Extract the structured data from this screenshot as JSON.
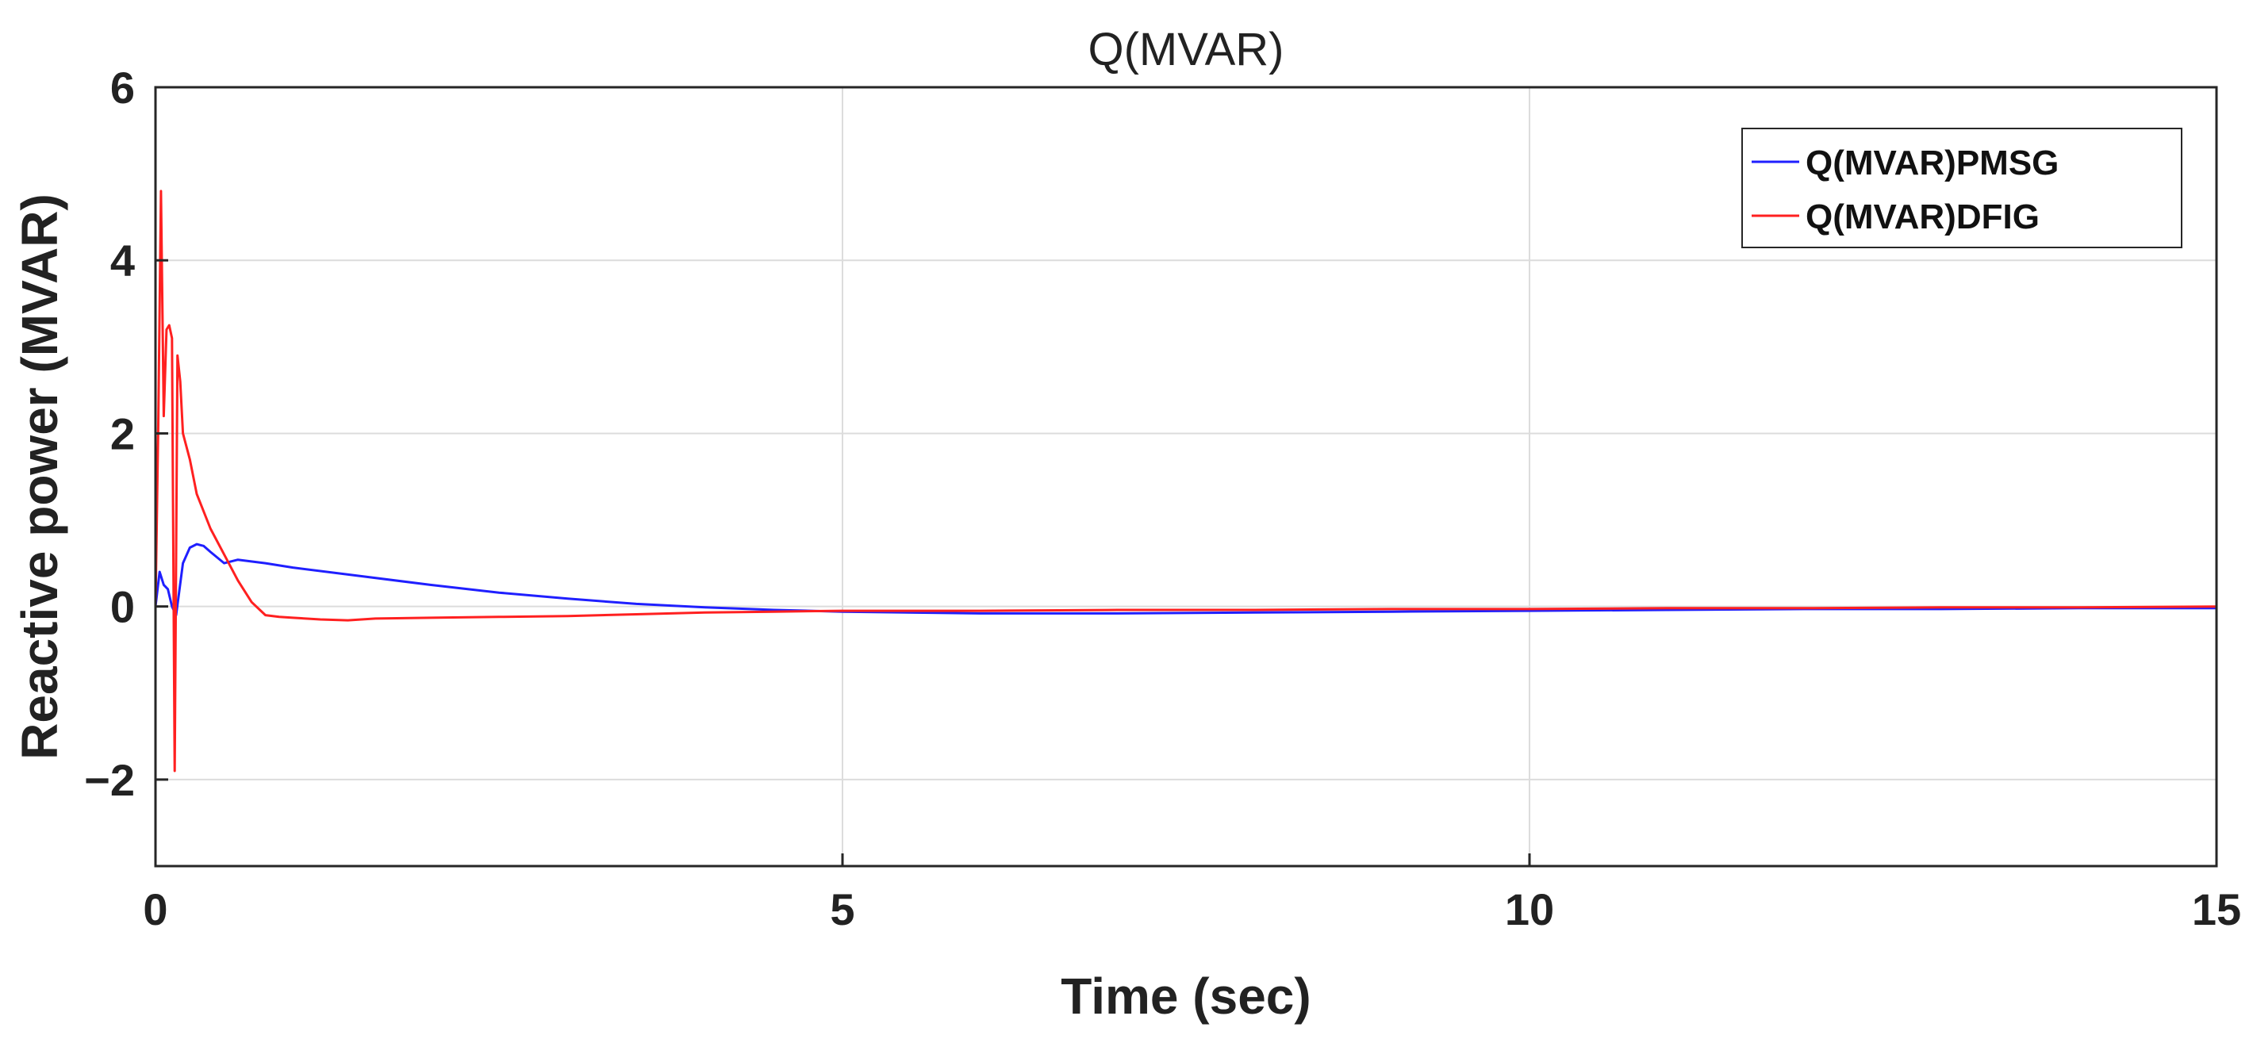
{
  "chart_data": {
    "type": "line",
    "title": "Q(MVAR)",
    "xlabel": "Time (sec)",
    "ylabel": "Reactive power (MVAR)",
    "xlim": [
      0,
      15
    ],
    "ylim": [
      -3,
      6
    ],
    "xticks": [
      0,
      5,
      10,
      15
    ],
    "yticks": [
      -2,
      0,
      2,
      4,
      6
    ],
    "xtick_labels": [
      "0",
      "5",
      "10",
      "15"
    ],
    "ytick_labels": [
      "−2",
      "0",
      "2",
      "4",
      "6"
    ],
    "grid": true,
    "legend_position": "top-right",
    "series": [
      {
        "name": "Q(MVAR)PMSG",
        "color": "#1f1fff",
        "x": [
          0,
          0.03,
          0.06,
          0.09,
          0.12,
          0.15,
          0.2,
          0.25,
          0.3,
          0.35,
          0.4,
          0.5,
          0.6,
          0.8,
          1.0,
          1.5,
          2.0,
          2.5,
          3.0,
          3.5,
          4.0,
          4.5,
          5.0,
          6.0,
          7.0,
          8.0,
          9.0,
          10.0,
          11.0,
          12.0,
          13.0,
          14.0,
          15.0
        ],
        "y": [
          0.0,
          0.4,
          0.25,
          0.2,
          0.0,
          -0.1,
          0.5,
          0.68,
          0.72,
          0.7,
          0.63,
          0.5,
          0.54,
          0.5,
          0.45,
          0.35,
          0.25,
          0.16,
          0.09,
          0.03,
          -0.01,
          -0.04,
          -0.06,
          -0.08,
          -0.08,
          -0.07,
          -0.06,
          -0.05,
          -0.04,
          -0.03,
          -0.03,
          -0.02,
          -0.02
        ]
      },
      {
        "name": "Q(MVAR)DFIG",
        "color": "#ff2020",
        "x": [
          0,
          0.02,
          0.04,
          0.06,
          0.08,
          0.1,
          0.12,
          0.14,
          0.16,
          0.18,
          0.2,
          0.25,
          0.3,
          0.4,
          0.5,
          0.6,
          0.7,
          0.8,
          0.9,
          1.0,
          1.2,
          1.4,
          1.6,
          2.0,
          2.5,
          3.0,
          3.5,
          4.0,
          4.5,
          5.0,
          6.0,
          7.0,
          8.0,
          9.0,
          10.0,
          11.0,
          12.0,
          13.0,
          14.0,
          15.0
        ],
        "y": [
          0.0,
          2.1,
          4.8,
          2.2,
          3.2,
          3.25,
          3.1,
          -1.9,
          2.9,
          2.6,
          2.0,
          1.7,
          1.3,
          0.9,
          0.6,
          0.3,
          0.05,
          -0.1,
          -0.12,
          -0.13,
          -0.15,
          -0.16,
          -0.14,
          -0.13,
          -0.12,
          -0.11,
          -0.09,
          -0.07,
          -0.06,
          -0.05,
          -0.05,
          -0.04,
          -0.04,
          -0.03,
          -0.03,
          -0.02,
          -0.02,
          -0.01,
          -0.01,
          0.0
        ]
      }
    ]
  }
}
